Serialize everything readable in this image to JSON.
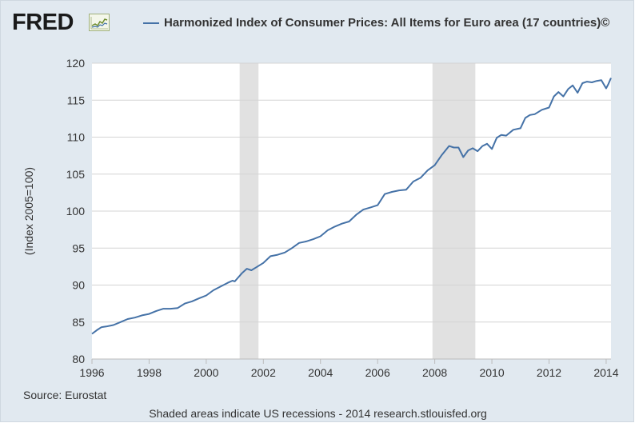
{
  "logo": {
    "text": "FRED",
    "icon": "line-chart-icon"
  },
  "legend": {
    "label": "Harmonized Index of Consumer Prices: All Items for Euro area (17 countries)©",
    "color": "#4572a7"
  },
  "footer": {
    "source": "Source: Eurostat",
    "note": "Shaded areas indicate US recessions - 2014 research.stlouisfed.org"
  },
  "chart_data": {
    "type": "line",
    "title": "",
    "xlabel": "",
    "ylabel": "(Index 2005=100)",
    "xlim": [
      1996.0,
      2014.17
    ],
    "ylim": [
      80,
      120
    ],
    "grid": true,
    "legend_position": "top",
    "x_ticks": [
      1996,
      1998,
      2000,
      2002,
      2004,
      2006,
      2008,
      2010,
      2012,
      2014
    ],
    "x_tick_labels": [
      "1996",
      "1998",
      "2000",
      "2002",
      "2004",
      "2006",
      "2008",
      "2010",
      "2012",
      "2014"
    ],
    "y_ticks": [
      80,
      85,
      90,
      95,
      100,
      105,
      110,
      115,
      120
    ],
    "y_tick_labels": [
      "80",
      "85",
      "90",
      "95",
      "100",
      "105",
      "110",
      "115",
      "120"
    ],
    "recessions": [
      {
        "start": 2001.17,
        "end": 2001.83
      },
      {
        "start": 2007.92,
        "end": 2009.42
      }
    ],
    "series": [
      {
        "name": "Harmonized Index of Consumer Prices: All Items for Euro area (17 countries)©",
        "color": "#4572a7",
        "x": [
          1996.0,
          1996.17,
          1996.33,
          1996.5,
          1996.75,
          1997.0,
          1997.25,
          1997.5,
          1997.75,
          1998.0,
          1998.25,
          1998.5,
          1998.75,
          1999.0,
          1999.25,
          1999.5,
          1999.75,
          2000.0,
          2000.25,
          2000.5,
          2000.75,
          2000.92,
          2001.0,
          2001.25,
          2001.42,
          2001.58,
          2001.75,
          2002.0,
          2002.25,
          2002.5,
          2002.75,
          2003.0,
          2003.25,
          2003.5,
          2003.75,
          2004.0,
          2004.25,
          2004.5,
          2004.75,
          2005.0,
          2005.25,
          2005.5,
          2005.75,
          2006.0,
          2006.25,
          2006.5,
          2006.75,
          2007.0,
          2007.25,
          2007.5,
          2007.75,
          2008.0,
          2008.25,
          2008.5,
          2008.67,
          2008.83,
          2009.0,
          2009.17,
          2009.33,
          2009.5,
          2009.67,
          2009.83,
          2010.0,
          2010.17,
          2010.33,
          2010.5,
          2010.75,
          2011.0,
          2011.17,
          2011.33,
          2011.5,
          2011.75,
          2012.0,
          2012.17,
          2012.33,
          2012.5,
          2012.67,
          2012.83,
          2013.0,
          2013.17,
          2013.33,
          2013.5,
          2013.67,
          2013.83,
          2014.0,
          2014.08,
          2014.17
        ],
        "values": [
          83.4,
          83.9,
          84.3,
          84.4,
          84.6,
          85.0,
          85.4,
          85.6,
          85.9,
          86.1,
          86.5,
          86.8,
          86.8,
          86.9,
          87.5,
          87.8,
          88.2,
          88.6,
          89.3,
          89.8,
          90.3,
          90.6,
          90.5,
          91.6,
          92.2,
          92.0,
          92.4,
          93.0,
          93.9,
          94.1,
          94.4,
          95.0,
          95.7,
          95.9,
          96.2,
          96.6,
          97.4,
          97.9,
          98.3,
          98.6,
          99.5,
          100.2,
          100.5,
          100.8,
          102.3,
          102.6,
          102.8,
          102.9,
          104.0,
          104.5,
          105.5,
          106.2,
          107.6,
          108.8,
          108.6,
          108.6,
          107.3,
          108.2,
          108.5,
          108.1,
          108.8,
          109.1,
          108.4,
          109.9,
          110.3,
          110.2,
          111.0,
          111.2,
          112.6,
          113.0,
          113.1,
          113.7,
          114.0,
          115.5,
          116.1,
          115.5,
          116.5,
          117.0,
          116.0,
          117.3,
          117.5,
          117.4,
          117.6,
          117.7,
          116.6,
          117.2,
          118.0
        ]
      }
    ]
  }
}
